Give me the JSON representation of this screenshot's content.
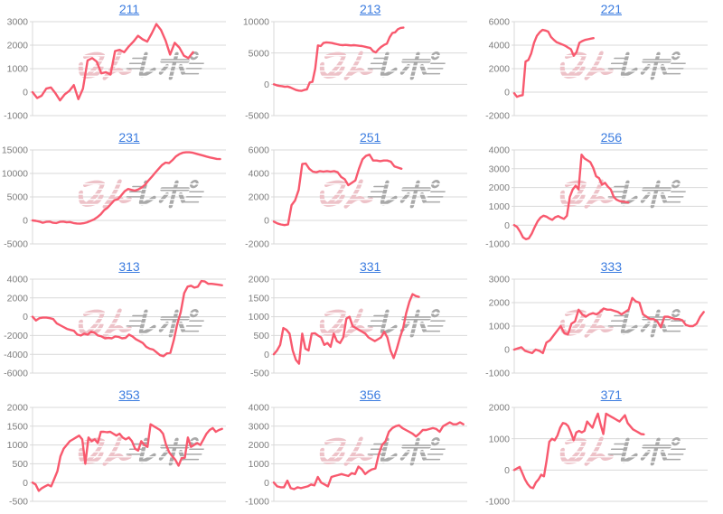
{
  "colors": {
    "line": "#f8596e",
    "grid": "#d9d9d9",
    "tick_label": "#7d7d7d",
    "link": "#3b7ce0",
    "watermark_pink": "#edc2c8",
    "watermark_gray": "#a9a9a9"
  },
  "watermark": {
    "text": "みんレポ"
  },
  "chart_data": [
    {
      "type": "line",
      "title": "211",
      "ylim": [
        -1000,
        3000
      ],
      "yticks": [
        3000,
        2000,
        1000,
        0,
        -1000
      ],
      "x_span": 0.83,
      "values": [
        0,
        -250,
        -150,
        150,
        200,
        -50,
        -350,
        -100,
        50,
        300,
        -300,
        150,
        1350,
        1450,
        1300,
        800,
        850,
        750,
        1750,
        1800,
        1700,
        1950,
        2150,
        2400,
        2250,
        2150,
        2500,
        2900,
        2650,
        2200,
        1600,
        2100,
        1900,
        1550,
        1450,
        1700
      ]
    },
    {
      "type": "line",
      "title": "213",
      "ylim": [
        -5000,
        10000
      ],
      "yticks": [
        10000,
        5000,
        0,
        -5000
      ],
      "x_span": 0.67,
      "values": [
        0,
        -150,
        -250,
        -300,
        -400,
        -350,
        -500,
        -700,
        -900,
        -1000,
        -1050,
        -900,
        -800,
        300,
        400,
        2500,
        6200,
        6100,
        6600,
        6700,
        6650,
        6600,
        6500,
        6400,
        6300,
        6250,
        6300,
        6250,
        6200,
        6250,
        6200,
        6150,
        6100,
        6000,
        5900,
        5800,
        5300,
        5100,
        5600,
        6000,
        6300,
        6500,
        7500,
        8200,
        8300,
        8800,
        9000,
        9050
      ]
    },
    {
      "type": "line",
      "title": "221",
      "ylim": [
        -2000,
        6000
      ],
      "yticks": [
        6000,
        4000,
        2000,
        0,
        -2000
      ],
      "x_span": 0.41,
      "values": [
        -100,
        -400,
        -300,
        -250,
        2600,
        2750,
        3300,
        4200,
        4800,
        5100,
        5300,
        5250,
        5150,
        4700,
        4450,
        4250,
        4150,
        4050,
        3950,
        3800,
        3650,
        3100,
        3400,
        4200,
        4350,
        4450,
        4500,
        4550,
        4600
      ]
    },
    {
      "type": "line",
      "title": "231",
      "ylim": [
        -5000,
        15000
      ],
      "yticks": [
        15000,
        10000,
        5000,
        0,
        -5000
      ],
      "x_span": 0.97,
      "values": [
        0,
        -100,
        -250,
        -500,
        -300,
        -250,
        -500,
        -550,
        -300,
        -250,
        -400,
        -350,
        -550,
        -650,
        -700,
        -600,
        -400,
        -100,
        200,
        700,
        1300,
        2200,
        2700,
        3500,
        4300,
        4500,
        5300,
        6200,
        6700,
        6500,
        6350,
        6600,
        7000,
        7600,
        8500,
        9300,
        10200,
        11000,
        11800,
        12300,
        12200,
        12800,
        13600,
        14100,
        14400,
        14500,
        14500,
        14400,
        14200,
        14000,
        13800,
        13600,
        13400,
        13250,
        13100,
        13050
      ]
    },
    {
      "type": "line",
      "title": "251",
      "ylim": [
        -2000,
        6000
      ],
      "yticks": [
        6000,
        4000,
        2000,
        0,
        -2000
      ],
      "x_span": 0.66,
      "values": [
        -100,
        -250,
        -350,
        -400,
        -350,
        1300,
        1700,
        2600,
        4800,
        4850,
        4400,
        4150,
        4100,
        4200,
        4150,
        4200,
        4150,
        4200,
        4100,
        3700,
        3500,
        3000,
        3200,
        3400,
        4400,
        5200,
        5500,
        5600,
        5100,
        5100,
        5050,
        5100,
        5100,
        5000,
        4600,
        4500,
        4400
      ]
    },
    {
      "type": "line",
      "title": "256",
      "ylim": [
        -1000,
        4000
      ],
      "yticks": [
        4000,
        3000,
        2000,
        1000,
        0,
        -1000
      ],
      "x_span": 0.59,
      "values": [
        0,
        -100,
        -350,
        -650,
        -750,
        -700,
        -450,
        -100,
        200,
        400,
        500,
        450,
        350,
        280,
        420,
        480,
        400,
        330,
        500,
        1500,
        1900,
        2100,
        1900,
        3750,
        3550,
        3450,
        3350,
        3050,
        2600,
        2500,
        2150,
        2250,
        2050,
        1900,
        1500,
        1350,
        1280,
        1250,
        1230,
        1200
      ]
    },
    {
      "type": "line",
      "title": "313",
      "ylim": [
        -6000,
        4000
      ],
      "yticks": [
        4000,
        2000,
        0,
        -2000,
        -4000,
        -6000
      ],
      "x_span": 0.98,
      "values": [
        0,
        -400,
        -150,
        -100,
        -100,
        -150,
        -250,
        -700,
        -900,
        -1100,
        -1300,
        -1400,
        -1500,
        -1900,
        -2000,
        -1800,
        -1900,
        -1600,
        -1700,
        -2000,
        -2100,
        -2300,
        -2250,
        -2300,
        -2100,
        -2150,
        -2300,
        -2250,
        -1900,
        -2100,
        -2400,
        -2600,
        -2800,
        -3200,
        -3400,
        -3500,
        -3800,
        -4100,
        -4200,
        -3900,
        -3850,
        -2500,
        -800,
        500,
        2500,
        3200,
        3300,
        3100,
        3200,
        3800,
        3750,
        3500,
        3500,
        3450,
        3400,
        3350
      ]
    },
    {
      "type": "line",
      "title": "331",
      "ylim": [
        -500,
        2000
      ],
      "yticks": [
        2000,
        1500,
        1000,
        500,
        0,
        -500
      ],
      "x_span": 0.75,
      "values": [
        0,
        100,
        250,
        700,
        650,
        550,
        100,
        -150,
        -250,
        550,
        150,
        100,
        550,
        560,
        500,
        450,
        250,
        300,
        200,
        550,
        350,
        300,
        450,
        950,
        1000,
        750,
        700,
        650,
        600,
        550,
        450,
        400,
        350,
        400,
        450,
        600,
        450,
        100,
        -100,
        150,
        450,
        700,
        1100,
        1400,
        1600,
        1550,
        1530
      ]
    },
    {
      "type": "line",
      "title": "333",
      "ylim": [
        -1000,
        3000
      ],
      "yticks": [
        3000,
        2000,
        1000,
        0,
        -1000
      ],
      "x_span": 0.98,
      "values": [
        0,
        50,
        100,
        -50,
        -100,
        -150,
        0,
        -50,
        -150,
        300,
        400,
        600,
        800,
        1000,
        700,
        650,
        1100,
        1200,
        1700,
        1500,
        1400,
        1500,
        1550,
        1500,
        1600,
        1750,
        1700,
        1700,
        1650,
        1600,
        1500,
        1600,
        1700,
        2200,
        2050,
        2000,
        1500,
        1400,
        1300,
        1300,
        1200,
        950,
        1400,
        1400,
        1350,
        1300,
        1300,
        1250,
        1050,
        1000,
        1000,
        1100,
        1400,
        1600
      ]
    },
    {
      "type": "line",
      "title": "353",
      "ylim": [
        -500,
        2000
      ],
      "yticks": [
        2000,
        1500,
        1000,
        500,
        0,
        -500
      ],
      "x_span": 0.98,
      "values": [
        0,
        -50,
        -220,
        -150,
        -100,
        -60,
        -100,
        100,
        300,
        700,
        900,
        1000,
        1100,
        1150,
        1200,
        1250,
        1150,
        500,
        1200,
        1100,
        1150,
        1050,
        1350,
        1350,
        1340,
        1350,
        1300,
        1250,
        1300,
        1200,
        1150,
        1200,
        1100,
        900,
        850,
        1100,
        1000,
        950,
        1550,
        1500,
        1450,
        1400,
        1300,
        1000,
        800,
        700,
        600,
        450,
        650,
        660,
        1200,
        950,
        1000,
        1050,
        1000,
        1150,
        1300,
        1400,
        1450,
        1350,
        1400,
        1430
      ]
    },
    {
      "type": "line",
      "title": "356",
      "ylim": [
        -1000,
        4000
      ],
      "yticks": [
        4000,
        3000,
        2000,
        1000,
        0,
        -1000
      ],
      "x_span": 0.98,
      "values": [
        0,
        -200,
        -250,
        -250,
        100,
        -300,
        -350,
        -250,
        -300,
        -250,
        -200,
        -100,
        -150,
        300,
        0,
        -100,
        -200,
        300,
        350,
        400,
        450,
        400,
        350,
        500,
        450,
        850,
        700,
        450,
        600,
        700,
        750,
        1500,
        2000,
        2200,
        2700,
        2900,
        3000,
        3050,
        2900,
        2800,
        2700,
        2600,
        2450,
        2600,
        2800,
        2800,
        2850,
        2900,
        2850,
        2700,
        3000,
        3100,
        3200,
        3100,
        3100,
        3200,
        3100
      ]
    },
    {
      "type": "line",
      "title": "371",
      "ylim": [
        -1000,
        2000
      ],
      "yticks": [
        2000,
        1000,
        0,
        -1000
      ],
      "x_span": 0.67,
      "values": [
        0,
        50,
        100,
        -100,
        -300,
        -450,
        -550,
        -580,
        -400,
        -300,
        -150,
        -200,
        300,
        900,
        1000,
        950,
        1100,
        1350,
        1500,
        1480,
        1400,
        1200,
        950,
        1200,
        1250,
        1200,
        1250,
        1550,
        1450,
        1350,
        1600,
        1800,
        1450,
        1150,
        1800,
        1750,
        1700,
        1650,
        1600,
        1550,
        1650,
        1750,
        1500,
        1400,
        1300,
        1250,
        1200,
        1150,
        1140
      ]
    }
  ]
}
